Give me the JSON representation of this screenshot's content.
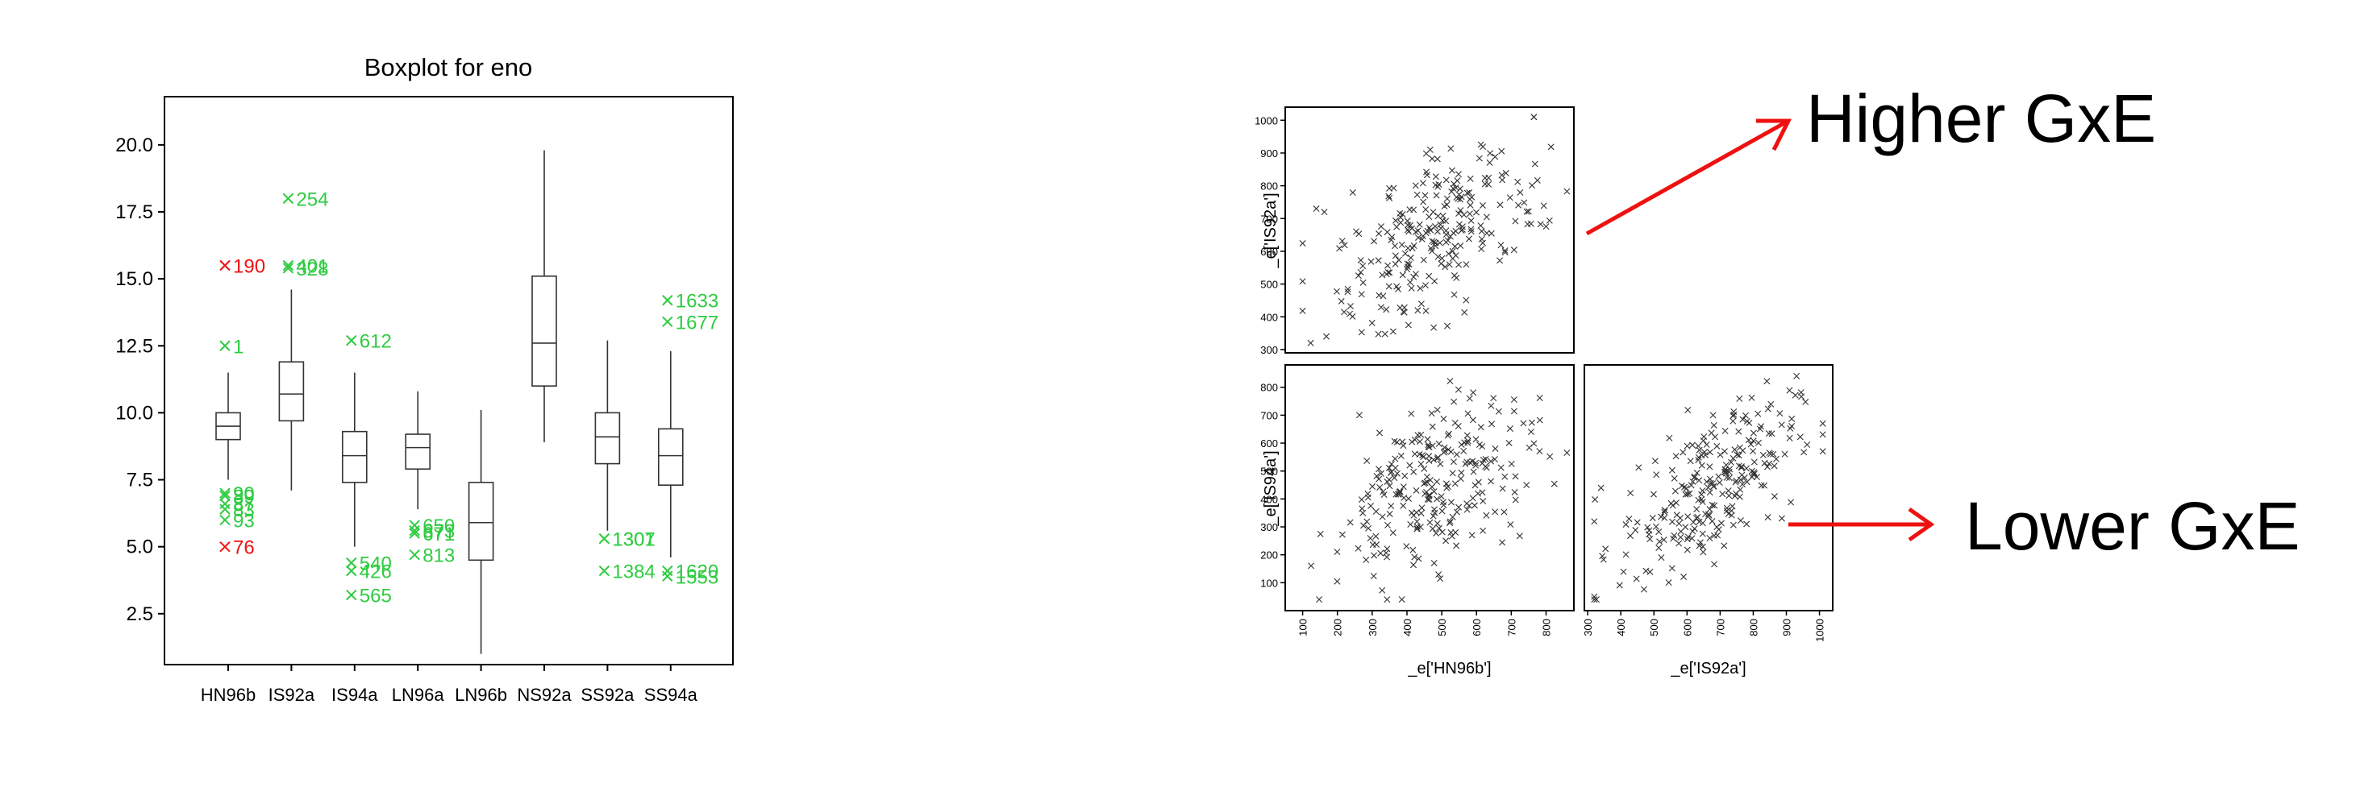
{
  "chart_data": [
    {
      "type": "box",
      "title": "Boxplot for eno",
      "xlabel": "",
      "ylabel": "",
      "ylim": [
        0.6,
        21.8
      ],
      "yticks": [
        2.5,
        5.0,
        7.5,
        10.0,
        12.5,
        15.0,
        17.5,
        20.0
      ],
      "ytick_labels": [
        "2.5",
        "5.0",
        "7.5",
        "10.0",
        "12.5",
        "15.0",
        "17.5",
        "20.0"
      ],
      "grid": false,
      "colors": {
        "mild_outlier": "#2ecc40",
        "extreme_outlier": "#ee1111",
        "box": "#333333"
      },
      "categories": [
        "HN96b",
        "IS92a",
        "IS94a",
        "LN96a",
        "LN96b",
        "NS92a",
        "SS92a",
        "SS94a"
      ],
      "boxes": [
        {
          "whisker_low": 7.5,
          "q1": 9.0,
          "median": 9.5,
          "q3": 10.0,
          "whisker_high": 11.5,
          "outliers": [
            {
              "y": 15.5,
              "label": "190",
              "type": "extreme"
            },
            {
              "y": 12.5,
              "label": "1",
              "type": "mild"
            },
            {
              "y": 7.0,
              "label": "90",
              "type": "mild"
            },
            {
              "y": 6.9,
              "label": "89",
              "type": "mild"
            },
            {
              "y": 6.6,
              "label": "87",
              "type": "mild"
            },
            {
              "y": 6.4,
              "label": "83",
              "type": "mild"
            },
            {
              "y": 6.0,
              "label": "93",
              "type": "mild"
            },
            {
              "y": 5.0,
              "label": "76",
              "type": "extreme"
            }
          ]
        },
        {
          "whisker_low": 7.1,
          "q1": 9.7,
          "median": 10.7,
          "q3": 11.9,
          "whisker_high": 14.6,
          "outliers": [
            {
              "y": 18.0,
              "label": "254",
              "type": "mild"
            },
            {
              "y": 15.5,
              "label": "401",
              "type": "mild"
            },
            {
              "y": 15.4,
              "label": "328",
              "type": "mild"
            }
          ]
        },
        {
          "whisker_low": 5.0,
          "q1": 7.4,
          "median": 8.4,
          "q3": 9.3,
          "whisker_high": 11.5,
          "outliers": [
            {
              "y": 12.7,
              "label": "612",
              "type": "mild"
            },
            {
              "y": 4.4,
              "label": "540",
              "type": "mild"
            },
            {
              "y": 4.1,
              "label": "426",
              "type": "mild"
            },
            {
              "y": 3.2,
              "label": "565",
              "type": "mild"
            }
          ]
        },
        {
          "whisker_low": 6.4,
          "q1": 7.9,
          "median": 8.7,
          "q3": 9.2,
          "whisker_high": 10.8,
          "outliers": [
            {
              "y": 5.8,
              "label": "650",
              "type": "mild"
            },
            {
              "y": 5.6,
              "label": "673",
              "type": "mild"
            },
            {
              "y": 5.5,
              "label": "671",
              "type": "mild"
            },
            {
              "y": 4.7,
              "label": "813",
              "type": "mild"
            }
          ]
        },
        {
          "whisker_low": 1.0,
          "q1": 4.5,
          "median": 5.9,
          "q3": 7.4,
          "whisker_high": 10.1,
          "outliers": []
        },
        {
          "whisker_low": 8.9,
          "q1": 11.0,
          "median": 12.6,
          "q3": 15.1,
          "whisker_high": 19.8,
          "outliers": []
        },
        {
          "whisker_low": 5.6,
          "q1": 8.1,
          "median": 9.1,
          "q3": 10.0,
          "whisker_high": 12.7,
          "outliers": [
            {
              "y": 5.3,
              "label": "1307",
              "type": "mild"
            },
            {
              "y": 5.3,
              "label": "1301",
              "type": "mild"
            },
            {
              "y": 4.1,
              "label": "1384",
              "type": "mild"
            }
          ]
        },
        {
          "whisker_low": 4.6,
          "q1": 7.3,
          "median": 8.4,
          "q3": 9.4,
          "whisker_high": 12.3,
          "outliers": [
            {
              "y": 14.2,
              "label": "1633",
              "type": "mild"
            },
            {
              "y": 13.4,
              "label": "1677",
              "type": "mild"
            },
            {
              "y": 4.1,
              "label": "1620",
              "type": "mild"
            },
            {
              "y": 3.9,
              "label": "1553",
              "type": "mild"
            }
          ]
        }
      ]
    },
    {
      "type": "scatter",
      "title": "",
      "xlabel": "",
      "ylabel": "_e['IS92a']",
      "xlim": [
        50,
        880
      ],
      "ylim": [
        290,
        1040
      ],
      "yticks": [
        300,
        400,
        500,
        600,
        700,
        800,
        900,
        1000
      ],
      "ytick_labels": [
        "300",
        "400",
        "500",
        "600",
        "700",
        "800",
        "900",
        "1000"
      ],
      "marker": "x",
      "trend_correlation": 0.45,
      "points_approx": 260,
      "x_range_points": [
        100,
        860
      ],
      "y_range_points": [
        320,
        1010
      ]
    },
    {
      "type": "scatter",
      "title": "",
      "xlabel": "_e['HN96b']",
      "ylabel": "_e['IS94a']",
      "xlim": [
        50,
        880
      ],
      "ylim": [
        0,
        880
      ],
      "xticks": [
        100,
        200,
        300,
        400,
        500,
        600,
        700,
        800
      ],
      "xtick_labels": [
        "100",
        "200",
        "300",
        "400",
        "500",
        "600",
        "700",
        "800"
      ],
      "yticks": [
        100,
        200,
        300,
        400,
        500,
        600,
        700,
        800
      ],
      "ytick_labels": [
        "100",
        "200",
        "300",
        "400",
        "500",
        "600",
        "700",
        "800"
      ],
      "marker": "x",
      "trend_correlation": 0.4,
      "points_approx": 260,
      "x_range_points": [
        100,
        860
      ],
      "y_range_points": [
        40,
        840
      ]
    },
    {
      "type": "scatter",
      "title": "",
      "xlabel": "_e['IS92a']",
      "ylabel": "",
      "xlim": [
        290,
        1040
      ],
      "ylim": [
        0,
        880
      ],
      "xticks": [
        300,
        400,
        500,
        600,
        700,
        800,
        900,
        1000
      ],
      "xtick_labels": [
        "300",
        "400",
        "500",
        "600",
        "700",
        "800",
        "900",
        "1000"
      ],
      "marker": "x",
      "trend_correlation": 0.6,
      "points_approx": 260,
      "x_range_points": [
        320,
        1010
      ],
      "y_range_points": [
        40,
        840
      ]
    }
  ],
  "annotations": {
    "higher_label": "Higher GxE",
    "lower_label": "Lower GxE",
    "arrow_color": "#ee1111"
  }
}
